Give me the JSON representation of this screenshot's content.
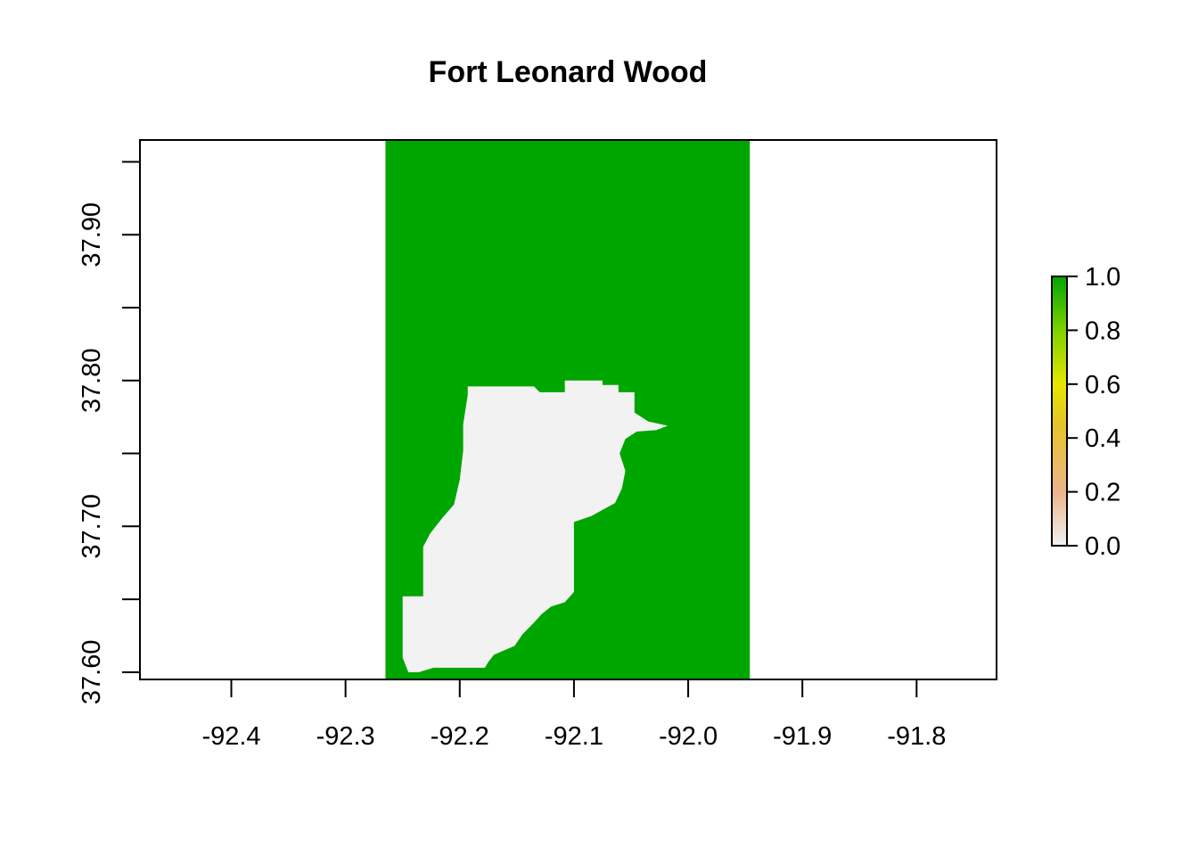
{
  "chart_data": {
    "type": "heatmap",
    "title": "Fort Leonard Wood",
    "xlabel": "",
    "ylabel": "",
    "xlim": [
      -92.48,
      -91.73
    ],
    "ylim": [
      37.595,
      37.965
    ],
    "x_ticks": [
      "-92.4",
      "-92.3",
      "-92.2",
      "-92.1",
      "-92.0",
      "-91.9",
      "-91.8"
    ],
    "y_ticks": [
      "37.60",
      "37.70",
      "37.80",
      "37.90"
    ],
    "raster_extent": {
      "xmin": -92.265,
      "xmax": -91.946,
      "ymin": 37.595,
      "ymax": 37.965
    },
    "background_value": 1.0,
    "installation_value": 0.0,
    "installation_outline": [
      [
        -92.193,
        37.796
      ],
      [
        -92.135,
        37.796
      ],
      [
        -92.13,
        37.792
      ],
      [
        -92.108,
        37.792
      ],
      [
        -92.108,
        37.8
      ],
      [
        -92.075,
        37.8
      ],
      [
        -92.075,
        37.797
      ],
      [
        -92.061,
        37.797
      ],
      [
        -92.061,
        37.792
      ],
      [
        -92.047,
        37.792
      ],
      [
        -92.047,
        37.778
      ],
      [
        -92.035,
        37.772
      ],
      [
        -92.018,
        37.769
      ],
      [
        -92.028,
        37.766
      ],
      [
        -92.045,
        37.765
      ],
      [
        -92.055,
        37.76
      ],
      [
        -92.06,
        37.75
      ],
      [
        -92.055,
        37.738
      ],
      [
        -92.058,
        37.726
      ],
      [
        -92.064,
        37.716
      ],
      [
        -92.085,
        37.707
      ],
      [
        -92.1,
        37.703
      ],
      [
        -92.1,
        37.655
      ],
      [
        -92.108,
        37.648
      ],
      [
        -92.12,
        37.645
      ],
      [
        -92.128,
        37.64
      ],
      [
        -92.135,
        37.634
      ],
      [
        -92.145,
        37.626
      ],
      [
        -92.152,
        37.618
      ],
      [
        -92.17,
        37.612
      ],
      [
        -92.175,
        37.607
      ],
      [
        -92.178,
        37.603
      ],
      [
        -92.223,
        37.603
      ],
      [
        -92.236,
        37.6
      ],
      [
        -92.245,
        37.6
      ],
      [
        -92.25,
        37.61
      ],
      [
        -92.25,
        37.652
      ],
      [
        -92.232,
        37.652
      ],
      [
        -92.232,
        37.686
      ],
      [
        -92.226,
        37.695
      ],
      [
        -92.215,
        37.706
      ],
      [
        -92.205,
        37.715
      ],
      [
        -92.2,
        37.732
      ],
      [
        -92.197,
        37.752
      ],
      [
        -92.197,
        37.77
      ],
      [
        -92.193,
        37.79
      ]
    ],
    "legend": {
      "placement": "right",
      "ticks": [
        "1.0",
        "0.8",
        "0.6",
        "0.4",
        "0.2",
        "0.0"
      ],
      "range": [
        0.0,
        1.0
      ],
      "colors": [
        "#f2f2f2",
        "#ebb48c",
        "#e6c428",
        "#e6e600",
        "#7fd100",
        "#00a600"
      ]
    },
    "colors": {
      "high": "#00a600",
      "low": "#f2f2f2"
    },
    "grid": false
  }
}
